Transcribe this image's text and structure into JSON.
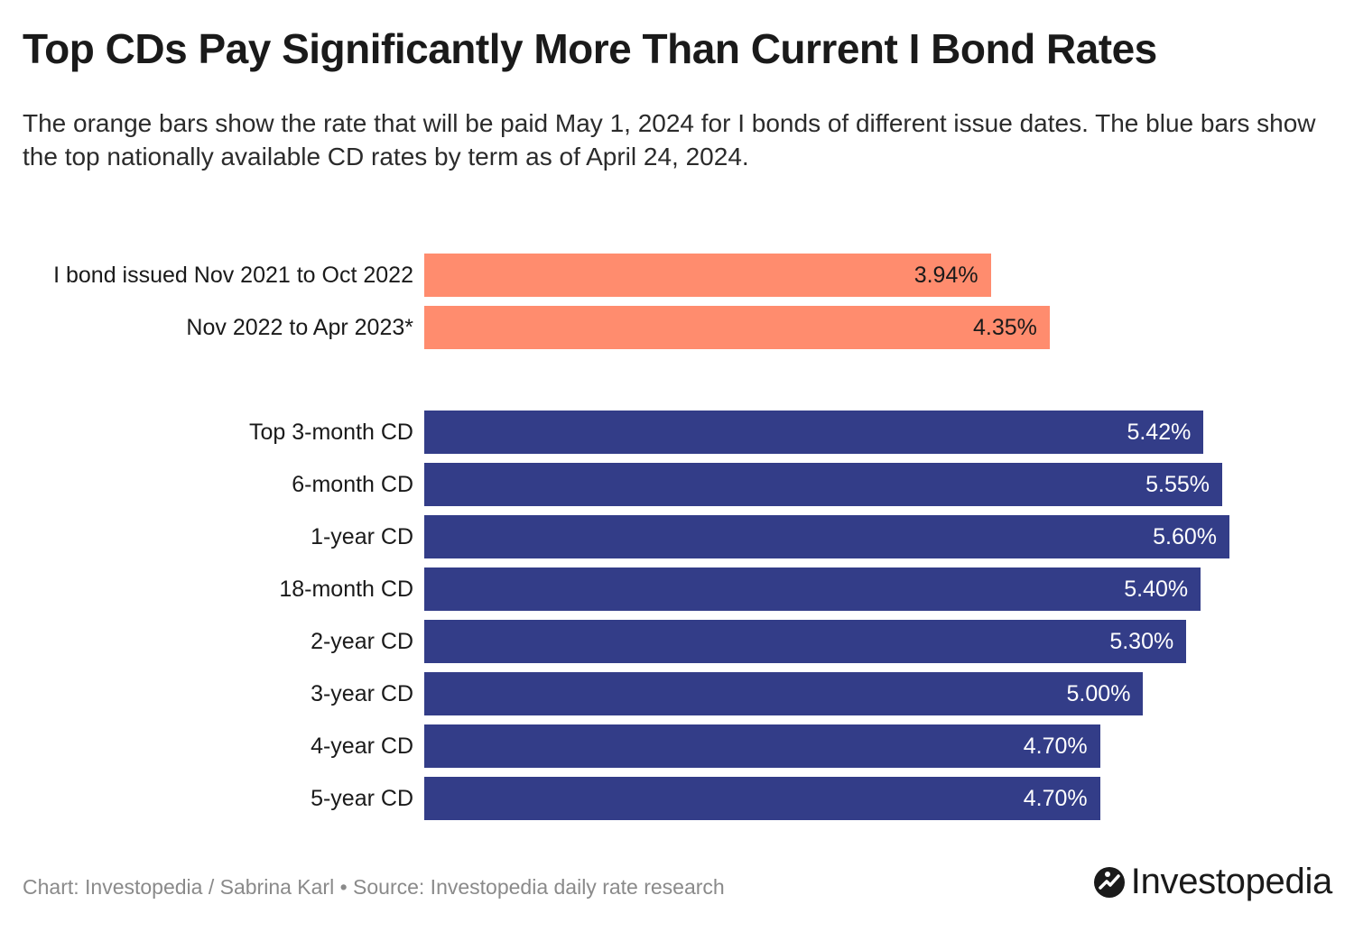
{
  "chart_data": {
    "type": "bar",
    "orientation": "horizontal",
    "title": "Top CDs Pay Significantly More Than Current I Bond Rates",
    "subtitle": "The orange bars show the rate that will be paid May 1, 2024 for I bonds of different issue dates. The blue bars show the top nationally available CD rates by term as of April 24, 2024.",
    "xlim": [
      0,
      5.6
    ],
    "xlabel": "",
    "ylabel": "",
    "groups": [
      {
        "name": "I bonds",
        "color": "#ff8c6e",
        "label_color": "#1a1a1a",
        "items": [
          {
            "category": "I bond issued Nov 2021 to Oct 2022",
            "value": 3.94,
            "label": "3.94%"
          },
          {
            "category": "Nov 2022 to Apr 2023*",
            "value": 4.35,
            "label": "4.35%"
          }
        ]
      },
      {
        "name": "CDs",
        "color": "#333d88",
        "label_color": "#ffffff",
        "items": [
          {
            "category": "Top 3-month CD",
            "value": 5.42,
            "label": "5.42%"
          },
          {
            "category": "6-month CD",
            "value": 5.55,
            "label": "5.55%"
          },
          {
            "category": "1-year CD",
            "value": 5.6,
            "label": "5.60%"
          },
          {
            "category": "18-month CD",
            "value": 5.4,
            "label": "5.40%"
          },
          {
            "category": "2-year CD",
            "value": 5.3,
            "label": "5.30%"
          },
          {
            "category": "3-year CD",
            "value": 5.0,
            "label": "5.00%"
          },
          {
            "category": "4-year CD",
            "value": 4.7,
            "label": "4.70%"
          },
          {
            "category": "5-year CD",
            "value": 4.7,
            "label": "4.70%"
          }
        ]
      }
    ]
  },
  "footer": {
    "credit": "Chart: Investopedia / Sabrina Karl • Source: Investopedia daily rate research"
  },
  "brand": {
    "name": "Investopedia",
    "icon": "investopedia-logo-icon"
  }
}
